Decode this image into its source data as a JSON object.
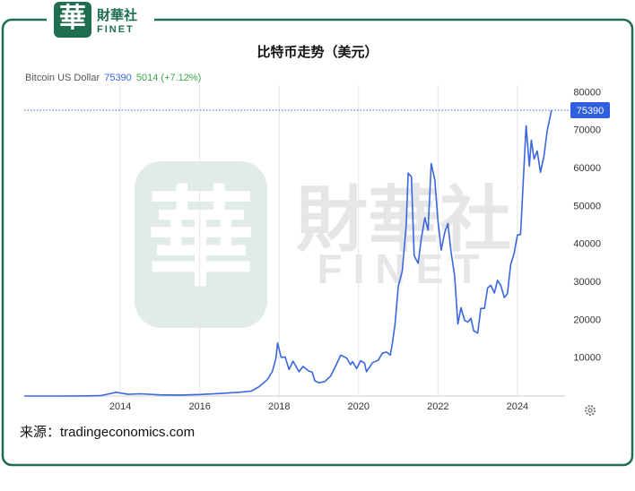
{
  "logo": {
    "mark": "華",
    "name": "財華社",
    "sub": "FINET"
  },
  "source": "来源：tradingeconomics.com",
  "chart_data": {
    "type": "line",
    "title": "比特币走势（美元）",
    "legend": {
      "name": "Bitcoin US Dollar",
      "current": 75390,
      "change": 5014,
      "change_label": "(+7.12%)"
    },
    "x": [
      2011.58,
      2012.5,
      2013.0,
      2013.5,
      2013.9,
      2014.0,
      2014.2,
      2014.5,
      2015.0,
      2015.5,
      2016.0,
      2016.5,
      2017.0,
      2017.3,
      2017.5,
      2017.7,
      2017.83,
      2017.92,
      2017.96,
      2018.05,
      2018.15,
      2018.25,
      2018.35,
      2018.5,
      2018.6,
      2018.75,
      2018.83,
      2018.9,
      2019.0,
      2019.15,
      2019.3,
      2019.45,
      2019.55,
      2019.7,
      2019.8,
      2019.85,
      2019.95,
      2020.05,
      2020.15,
      2020.2,
      2020.35,
      2020.5,
      2020.6,
      2020.7,
      2020.8,
      2020.85,
      2020.92,
      2021.0,
      2021.1,
      2021.2,
      2021.25,
      2021.33,
      2021.4,
      2021.5,
      2021.58,
      2021.67,
      2021.75,
      2021.83,
      2021.92,
      2022.0,
      2022.08,
      2022.17,
      2022.25,
      2022.33,
      2022.42,
      2022.5,
      2022.58,
      2022.67,
      2022.75,
      2022.83,
      2022.9,
      2023.0,
      2023.08,
      2023.17,
      2023.25,
      2023.33,
      2023.42,
      2023.5,
      2023.58,
      2023.67,
      2023.75,
      2023.83,
      2023.92,
      2024.0,
      2024.08,
      2024.17,
      2024.22,
      2024.3,
      2024.35,
      2024.42,
      2024.5,
      2024.58,
      2024.67,
      2024.75,
      2024.86
    ],
    "series": [
      {
        "name": "Bitcoin US Dollar",
        "color": "#3a66e0",
        "values": [
          5,
          7,
          13,
          100,
          1000,
          800,
          450,
          600,
          300,
          250,
          400,
          650,
          1000,
          1300,
          2500,
          4300,
          6500,
          10000,
          14000,
          10200,
          10300,
          7000,
          9200,
          6400,
          7800,
          6600,
          6300,
          4000,
          3500,
          3800,
          5300,
          8500,
          10800,
          10000,
          8300,
          9100,
          7200,
          9300,
          8700,
          6400,
          8800,
          9500,
          11300,
          11600,
          10800,
          13800,
          19000,
          29000,
          33000,
          45000,
          58800,
          57800,
          37000,
          35000,
          41500,
          47000,
          43800,
          61300,
          57000,
          46300,
          38500,
          43200,
          45500,
          38000,
          31700,
          19000,
          23300,
          20000,
          19500,
          20500,
          17200,
          16600,
          23100,
          23100,
          28500,
          29200,
          27200,
          30500,
          29200,
          26000,
          27000,
          34600,
          37700,
          42500,
          42600,
          61200,
          71300,
          60600,
          67500,
          62500,
          64600,
          59000,
          63300,
          70000,
          75390
        ]
      }
    ],
    "xlim": [
      2011.58,
      2025.2
    ],
    "xticks": [
      2014,
      2016,
      2018,
      2020,
      2022,
      2024
    ],
    "ylim": [
      0,
      82000
    ],
    "yticks": [
      10000,
      20000,
      30000,
      40000,
      50000,
      60000,
      70000,
      80000
    ],
    "grid": true
  }
}
